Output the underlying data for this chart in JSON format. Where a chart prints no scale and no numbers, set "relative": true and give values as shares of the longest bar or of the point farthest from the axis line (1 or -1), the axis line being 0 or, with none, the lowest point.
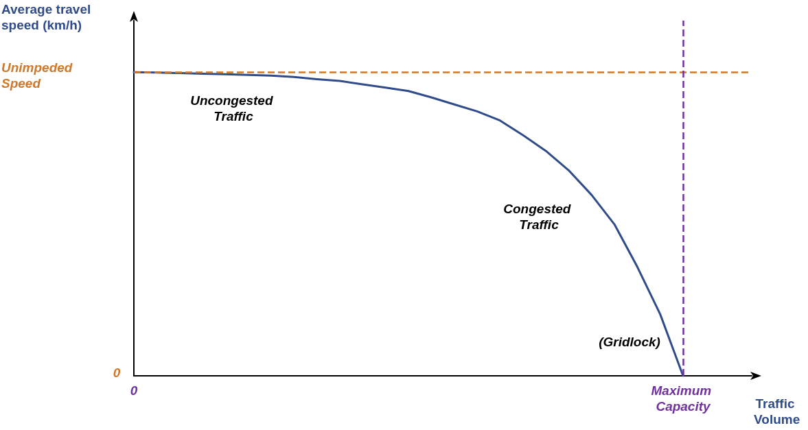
{
  "chart_data": {
    "type": "line",
    "relative": true,
    "xlabel": "Traffic Volume",
    "ylabel": "Average travel speed (km/h)",
    "categories": [
      "0",
      null,
      null,
      null,
      null,
      null,
      null,
      null,
      null,
      null,
      null,
      null,
      null,
      null,
      null,
      null,
      null,
      null,
      null,
      null,
      null,
      null,
      null,
      null,
      "Maximum Capacity",
      null,
      null,
      null
    ],
    "series": [
      {
        "color": "#2f4b8a",
        "values": [
          1,
          0.999,
          0.997,
          0.995,
          0.993,
          0.991,
          0.989,
          0.984,
          0.977,
          0.971,
          0.96,
          0.949,
          0.938,
          0.917,
          0.894,
          0.871,
          0.841,
          0.793,
          0.741,
          0.677,
          0.596,
          0.499,
          0.359,
          0.203,
          0,
          null,
          null,
          null
        ]
      }
    ],
    "ref_lines": [
      {
        "axis": "y",
        "value": 1,
        "label": "Unimpeded Speed",
        "color": "#d0782a",
        "line_style": "dashed"
      },
      {
        "axis": "x",
        "value": "Maximum Capacity",
        "color": "#7030a0",
        "line_style": "dashed"
      }
    ],
    "annotations": [
      "Uncongested Traffic",
      "Congested Traffic",
      "(Gridlock)",
      "0"
    ],
    "grid": false,
    "marker": "none",
    "line_style": "solid"
  }
}
